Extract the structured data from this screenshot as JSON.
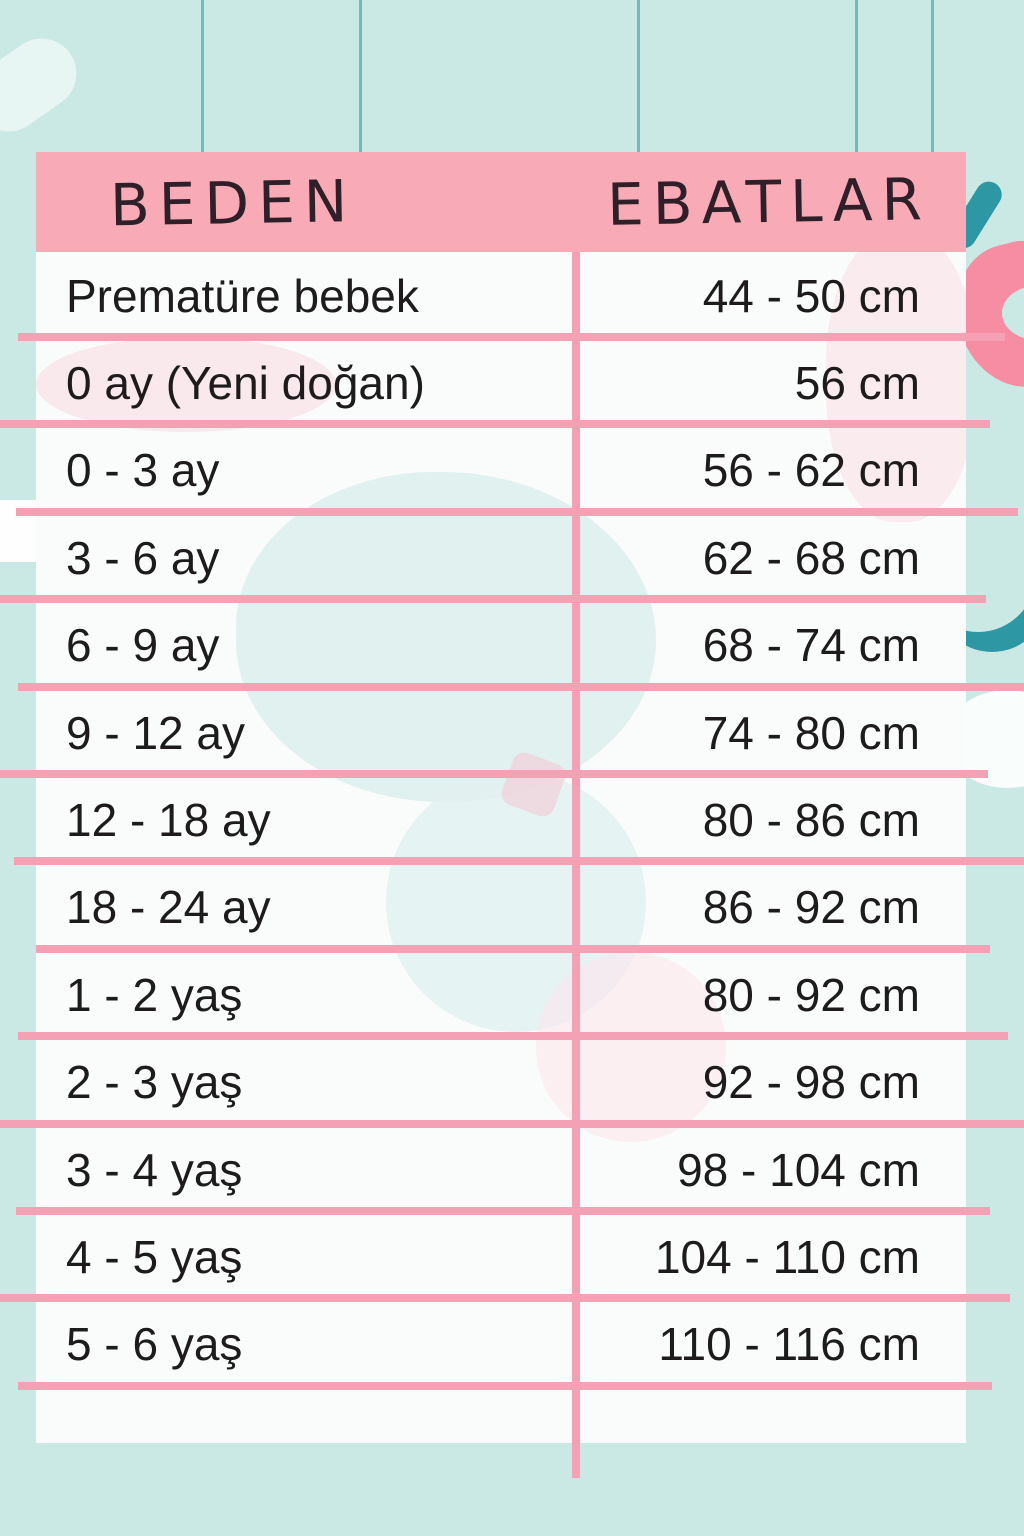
{
  "table": {
    "headers": {
      "size": "BEDEN",
      "dimensions": "EBATLAR"
    },
    "rows": [
      {
        "beden": "Prematüre bebek",
        "ebat": "44 - 50 cm"
      },
      {
        "beden": "0 ay (Yeni doğan)",
        "ebat": "56 cm"
      },
      {
        "beden": "0 - 3 ay",
        "ebat": "56 - 62 cm"
      },
      {
        "beden": "3 - 6 ay",
        "ebat": "62 - 68 cm"
      },
      {
        "beden": "6 - 9 ay",
        "ebat": "68 - 74 cm"
      },
      {
        "beden": "9 - 12 ay",
        "ebat": "74 - 80 cm"
      },
      {
        "beden": "12 - 18 ay",
        "ebat": "80 - 86 cm"
      },
      {
        "beden": "18 - 24 ay",
        "ebat": "86 - 92 cm"
      },
      {
        "beden": "1 - 2 yaş",
        "ebat": "80 - 92 cm"
      },
      {
        "beden": "2 - 3 yaş",
        "ebat": "92 - 98 cm"
      },
      {
        "beden": "3 - 4 yaş",
        "ebat": "98 - 104 cm"
      },
      {
        "beden": "4 - 5 yaş",
        "ebat": "104 - 110 cm"
      },
      {
        "beden": "5 - 6 yaş",
        "ebat": "110 - 116 cm"
      }
    ]
  },
  "colors": {
    "background_mint": "#cbe9e4",
    "header_pink": "#f8abb6",
    "divider_pink": "#f4a0b5",
    "accent_teal": "#2e97a4",
    "decor_pink": "#f78da2",
    "text": "#1d1b1c"
  },
  "chart_data": {
    "type": "table",
    "title": "",
    "columns": [
      "BEDEN",
      "EBATLAR"
    ],
    "rows": [
      [
        "Prematüre bebek",
        "44 - 50 cm"
      ],
      [
        "0 ay (Yeni doğan)",
        "56 cm"
      ],
      [
        "0 - 3 ay",
        "56 - 62 cm"
      ],
      [
        "3 - 6 ay",
        "62 - 68 cm"
      ],
      [
        "6 - 9 ay",
        "68 - 74 cm"
      ],
      [
        "9 - 12 ay",
        "74 - 80 cm"
      ],
      [
        "12 - 18 ay",
        "80 - 86 cm"
      ],
      [
        "18 - 24 ay",
        "86 - 92 cm"
      ],
      [
        "1 - 2 yaş",
        "80 - 92 cm"
      ],
      [
        "2 - 3 yaş",
        "92 - 98 cm"
      ],
      [
        "3 - 4 yaş",
        "98 - 104 cm"
      ],
      [
        "4 - 5 yaş",
        "104 - 110 cm"
      ],
      [
        "5 - 6 yaş",
        "110 - 116 cm"
      ]
    ]
  }
}
